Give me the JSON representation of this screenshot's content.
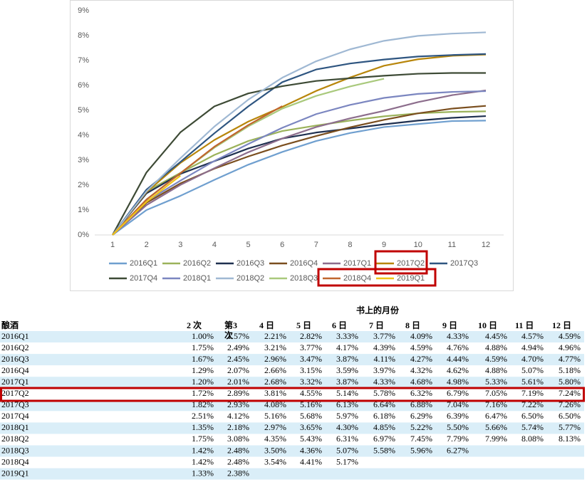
{
  "chart_data": {
    "type": "line",
    "x": [
      1,
      2,
      3,
      4,
      5,
      6,
      7,
      8,
      9,
      10,
      11,
      12
    ],
    "xlim": [
      1,
      12
    ],
    "xticks": [
      1,
      2,
      3,
      4,
      5,
      6,
      7,
      8,
      9,
      10,
      11,
      12
    ],
    "ylim": [
      0,
      9
    ],
    "yticks": [
      {
        "value": 0,
        "label": "0%"
      },
      {
        "value": 1,
        "label": "1%"
      },
      {
        "value": 2,
        "label": "2%"
      },
      {
        "value": 3,
        "label": "3%"
      },
      {
        "value": 4,
        "label": "4%"
      },
      {
        "value": 5,
        "label": "5%"
      },
      {
        "value": 6,
        "label": "6%"
      },
      {
        "value": 7,
        "label": "7%"
      },
      {
        "value": 8,
        "label": "8%"
      },
      {
        "value": 9,
        "label": "9%"
      }
    ],
    "grid": false,
    "legend": "bottom",
    "series": [
      {
        "name": "2016Q1",
        "color": "#6f9fcf",
        "values": [
          0,
          1.0,
          1.57,
          2.21,
          2.82,
          3.33,
          3.77,
          4.09,
          4.33,
          4.45,
          4.57,
          4.59
        ]
      },
      {
        "name": "2016Q2",
        "color": "#9bb25a",
        "values": [
          0,
          1.75,
          2.49,
          3.21,
          3.77,
          4.17,
          4.39,
          4.59,
          4.76,
          4.88,
          4.94,
          4.96
        ]
      },
      {
        "name": "2016Q3",
        "color": "#1f3050",
        "values": [
          0,
          1.67,
          2.45,
          2.96,
          3.47,
          3.87,
          4.11,
          4.27,
          4.44,
          4.59,
          4.7,
          4.77
        ]
      },
      {
        "name": "2016Q4",
        "color": "#7a4e1e",
        "values": [
          0,
          1.29,
          2.07,
          2.66,
          3.15,
          3.59,
          3.97,
          4.32,
          4.62,
          4.88,
          5.07,
          5.18
        ]
      },
      {
        "name": "2017Q1",
        "color": "#8c6d8c",
        "values": [
          0,
          1.2,
          2.01,
          2.68,
          3.32,
          3.87,
          4.33,
          4.68,
          4.98,
          5.33,
          5.61,
          5.8
        ]
      },
      {
        "name": "2017Q2",
        "color": "#b8860b",
        "values": [
          0,
          1.72,
          2.89,
          3.81,
          4.55,
          5.14,
          5.78,
          6.32,
          6.79,
          7.05,
          7.19,
          7.24
        ]
      },
      {
        "name": "2017Q3",
        "color": "#2e5580",
        "values": [
          0,
          1.82,
          2.93,
          4.08,
          5.16,
          6.13,
          6.64,
          6.88,
          7.04,
          7.16,
          7.22,
          7.26
        ]
      },
      {
        "name": "2017Q4",
        "color": "#3d4a35",
        "values": [
          0,
          2.51,
          4.12,
          5.16,
          5.68,
          5.97,
          6.18,
          6.29,
          6.39,
          6.47,
          6.5,
          6.5
        ]
      },
      {
        "name": "2018Q1",
        "color": "#7b86c0",
        "values": [
          0,
          1.35,
          2.18,
          2.97,
          3.65,
          4.3,
          4.85,
          5.22,
          5.5,
          5.66,
          5.74,
          5.77
        ]
      },
      {
        "name": "2018Q2",
        "color": "#9fb8d3",
        "values": [
          0,
          1.75,
          3.08,
          4.35,
          5.43,
          6.31,
          6.97,
          7.45,
          7.79,
          7.99,
          8.08,
          8.13
        ]
      },
      {
        "name": "2018Q3",
        "color": "#a9c97c",
        "values": [
          0,
          1.42,
          2.48,
          3.5,
          4.36,
          5.07,
          5.58,
          5.96,
          6.27,
          null,
          null,
          null
        ]
      },
      {
        "name": "2018Q4",
        "color": "#c0652e",
        "values": [
          0,
          1.42,
          2.48,
          3.54,
          4.41,
          5.17,
          null,
          null,
          null,
          null,
          null,
          null
        ]
      },
      {
        "name": "2019Q1",
        "color": "#f0c419",
        "values": [
          0,
          1.33,
          2.38,
          null,
          null,
          null,
          null,
          null,
          null,
          null,
          null,
          null
        ]
      }
    ]
  },
  "table": {
    "title": "书上的月份",
    "columns": [
      "酿酒",
      "2 次",
      "第3\n次",
      "4 日",
      "5 日",
      "6 日",
      "7 日",
      "8 日",
      "9 日",
      "10 日",
      "11 日",
      "12 日"
    ],
    "rows": [
      [
        "2016Q1",
        "1.00%",
        "1.57%",
        "2.21%",
        "2.82%",
        "3.33%",
        "3.77%",
        "4.09%",
        "4.33%",
        "4.45%",
        "4.57%",
        "4.59%"
      ],
      [
        "2016Q2",
        "1.75%",
        "2.49%",
        "3.21%",
        "3.77%",
        "4.17%",
        "4.39%",
        "4.59%",
        "4.76%",
        "4.88%",
        "4.94%",
        "4.96%"
      ],
      [
        "2016Q3",
        "1.67%",
        "2.45%",
        "2.96%",
        "3.47%",
        "3.87%",
        "4.11%",
        "4.27%",
        "4.44%",
        "4.59%",
        "4.70%",
        "4.77%"
      ],
      [
        "2016Q4",
        "1.29%",
        "2.07%",
        "2.66%",
        "3.15%",
        "3.59%",
        "3.97%",
        "4.32%",
        "4.62%",
        "4.88%",
        "5.07%",
        "5.18%"
      ],
      [
        "2017Q1",
        "1.20%",
        "2.01%",
        "2.68%",
        "3.32%",
        "3.87%",
        "4.33%",
        "4.68%",
        "4.98%",
        "5.33%",
        "5.61%",
        "5.80%"
      ],
      [
        "2017Q2",
        "1.72%",
        "2.89%",
        "3.81%",
        "4.55%",
        "5.14%",
        "5.78%",
        "6.32%",
        "6.79%",
        "7.05%",
        "7.19%",
        "7.24%"
      ],
      [
        "2017Q3",
        "1.82%",
        "2.93%",
        "4.08%",
        "5.16%",
        "6.13%",
        "6.64%",
        "6.88%",
        "7.04%",
        "7.16%",
        "7.22%",
        "7.26%"
      ],
      [
        "2017Q4",
        "2.51%",
        "4.12%",
        "5.16%",
        "5.68%",
        "5.97%",
        "6.18%",
        "6.29%",
        "6.39%",
        "6.47%",
        "6.50%",
        "6.50%"
      ],
      [
        "2018Q1",
        "1.35%",
        "2.18%",
        "2.97%",
        "3.65%",
        "4.30%",
        "4.85%",
        "5.22%",
        "5.50%",
        "5.66%",
        "5.74%",
        "5.77%"
      ],
      [
        "2018Q2",
        "1.75%",
        "3.08%",
        "4.35%",
        "5.43%",
        "6.31%",
        "6.97%",
        "7.45%",
        "7.79%",
        "7.99%",
        "8.08%",
        "8.13%"
      ],
      [
        "2018Q3",
        "1.42%",
        "2.48%",
        "3.50%",
        "4.36%",
        "5.07%",
        "5.58%",
        "5.96%",
        "6.27%"
      ],
      [
        "2018Q4",
        "1.42%",
        "2.48%",
        "3.54%",
        "4.41%",
        "5.17%"
      ],
      [
        "2019Q1",
        "1.33%",
        "2.38%"
      ]
    ]
  }
}
